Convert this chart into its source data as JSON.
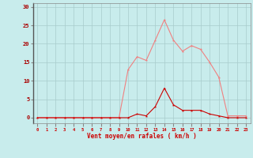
{
  "x": [
    0,
    1,
    2,
    3,
    4,
    5,
    6,
    7,
    8,
    9,
    10,
    11,
    12,
    13,
    14,
    15,
    16,
    17,
    18,
    19,
    20,
    21,
    22,
    23
  ],
  "rafales": [
    0,
    0,
    0,
    0,
    0,
    0,
    0,
    0,
    0,
    0,
    13,
    16.5,
    15.5,
    21,
    26.5,
    21,
    18,
    19.5,
    18.5,
    15,
    11,
    0.5,
    0.5,
    0.5
  ],
  "moyen": [
    0,
    0,
    0,
    0,
    0,
    0,
    0,
    0,
    0,
    0,
    0,
    1,
    0.5,
    3,
    8,
    3.5,
    2,
    2,
    2,
    1,
    0.5,
    0,
    0,
    0
  ],
  "color_rafales": "#f08080",
  "color_moyen": "#cc0000",
  "bg_color": "#c8ecec",
  "grid_color": "#a8cccc",
  "xlabel": "Vent moyen/en rafales ( km/h )",
  "yticks": [
    0,
    5,
    10,
    15,
    20,
    25,
    30
  ],
  "xlim": [
    -0.5,
    23.5
  ],
  "ylim": [
    -1.5,
    31
  ]
}
